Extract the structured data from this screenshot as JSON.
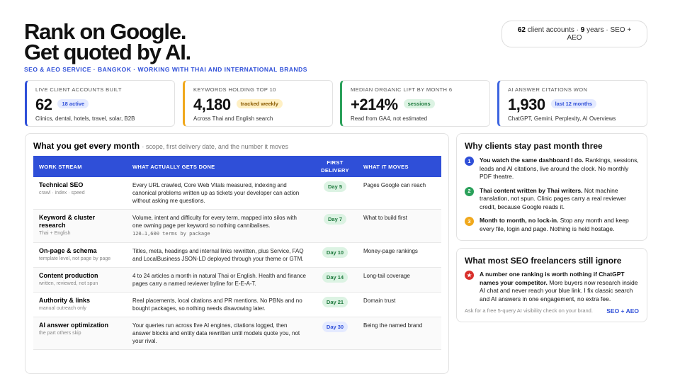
{
  "header": {
    "title_line1": "Rank on Google.",
    "title_line2": "Get quoted by AI.",
    "subtitle": "SEO & AEO SERVICE · BANGKOK · WORKING WITH THAI AND INTERNATIONAL BRANDS",
    "badge": {
      "accounts": "62",
      "accounts_text": "client accounts ·",
      "years": "9",
      "years_text": "years · SEO + AEO"
    }
  },
  "stats": [
    {
      "label": "LIVE CLIENT ACCOUNTS BUILT",
      "value": "62",
      "tag": "18 active",
      "caption": "Clinics, dental, hotels, travel, solar, B2B",
      "accent": "#2f4fd8",
      "tag_color": "blue"
    },
    {
      "label": "KEYWORDS HOLDING TOP 10",
      "value": "4,180",
      "tag": "tracked weekly",
      "caption": "Across Thai and English search",
      "accent": "#f0a81c",
      "tag_color": "yellow"
    },
    {
      "label": "MEDIAN ORGANIC LIFT BY MONTH 6",
      "value": "+214%",
      "tag": "sessions",
      "caption": "Read from GA4, not estimated",
      "accent": "#2aa05a",
      "tag_color": "green"
    },
    {
      "label": "AI ANSWER CITATIONS WON",
      "value": "1,930",
      "tag": "last 12 months",
      "caption": "ChatGPT, Gemini, Perplexity, AI Overviews",
      "accent": "#3c64e0",
      "tag_color": "blue"
    }
  ],
  "table": {
    "title": "What you get every month",
    "note": "· scope, first delivery date, and the number it moves",
    "columns": [
      "WORK STREAM",
      "WHAT ACTUALLY GETS DONE",
      "FIRST DELIVERY",
      "WHAT IT MOVES"
    ],
    "rows": [
      {
        "name": "Technical SEO",
        "sub": "crawl · index · speed",
        "done": "Every URL crawled, Core Web Vitals measured, indexing and canonical problems written up as tickets your developer can action without asking me questions.",
        "delivery": "Day 5",
        "tone": "green",
        "moves": "Pages Google can reach"
      },
      {
        "name": "Keyword & cluster research",
        "sub": "Thai + English",
        "done": "Volume, intent and difficulty for every term, mapped into silos with one owning page per keyword so nothing cannibalises.",
        "code": "120–1,600 terms by package",
        "delivery": "Day 7",
        "tone": "green",
        "moves": "What to build first"
      },
      {
        "name": "On-page & schema",
        "sub": "template level, not page by page",
        "done": "Titles, meta, headings and internal links rewritten, plus Service, FAQ and LocalBusiness JSON-LD deployed through your theme or GTM.",
        "delivery": "Day 10",
        "tone": "green",
        "moves": "Money-page rankings"
      },
      {
        "name": "Content production",
        "sub": "written, reviewed, not spun",
        "done": "4 to 24 articles a month in natural Thai or English. Health and finance pages carry a named reviewer byline for E-E-A-T.",
        "delivery": "Day 14",
        "tone": "green",
        "moves": "Long-tail coverage"
      },
      {
        "name": "Authority & links",
        "sub": "manual outreach only",
        "done": "Real placements, local citations and PR mentions. No PBNs and no bought packages, so nothing needs disavowing later.",
        "delivery": "Day 21",
        "tone": "green",
        "moves": "Domain trust"
      },
      {
        "name": "AI answer optimization",
        "sub": "the part others skip",
        "done": "Your queries run across five AI engines, citations logged, then answer blocks and entity data rewritten until models quote you, not your rival.",
        "delivery": "Day 30",
        "tone": "blue",
        "moves": "Being the named brand"
      }
    ]
  },
  "reasons": {
    "title": "Why clients stay past month three",
    "items": [
      {
        "number": 1,
        "color": "#2f4fd8",
        "lead": "You watch the same dashboard I do.",
        "text": "Rankings, sessions, leads and AI citations, live around the clock. No monthly PDF theatre."
      },
      {
        "number": 2,
        "color": "#2aa05a",
        "lead": "Thai content written by Thai writers.",
        "text": "Not machine translation, not spun. Clinic pages carry a real reviewer credit, because Google reads it."
      },
      {
        "number": 3,
        "color": "#f0a81c",
        "lead": "Month to month, no lock-in.",
        "text": "Stop any month and keep every file, login and page. Nothing is held hostage."
      }
    ]
  },
  "ignore": {
    "title": "What most SEO freelancers still ignore",
    "lead": "A number one ranking is worth nothing if ChatGPT names your competitor.",
    "text": "More buyers now research inside AI chat and never reach your blue link. I fix classic search and AI answers in one engagement, no extra fee.",
    "footer": "Ask for a free 5-query AI visibility check on your brand.",
    "link": "SEO + AEO"
  }
}
